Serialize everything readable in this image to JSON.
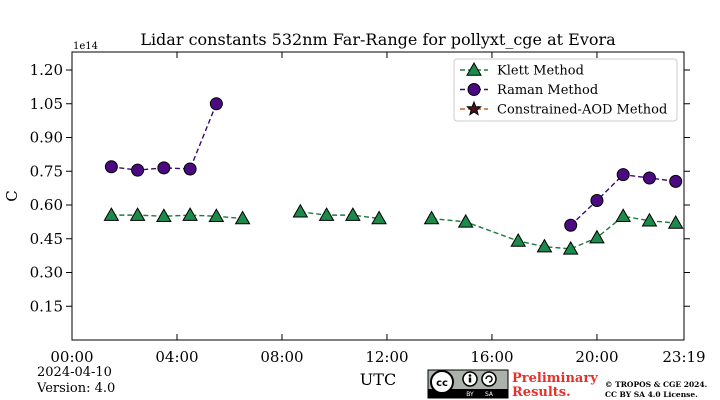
{
  "chart_data": {
    "type": "line",
    "title": "Lidar constants 532nm Far-Range for pollyxt_cge at Evora",
    "xlabel": "UTC",
    "ylabel": "C",
    "y_multiplier_label": "1e14",
    "ylim": [
      0.0,
      1.28
    ],
    "xlim_hours": [
      0,
      23.3167
    ],
    "x_ticks": [
      "00:00",
      "04:00",
      "08:00",
      "12:00",
      "16:00",
      "20:00",
      "23:19"
    ],
    "y_ticks": [
      "0.15",
      "0.30",
      "0.45",
      "0.60",
      "0.75",
      "0.90",
      "1.05",
      "1.20"
    ],
    "grid": false,
    "legend_position": "top-right",
    "series": [
      {
        "name": "Klett Method",
        "marker": "triangle",
        "color": "#1b8a4a",
        "line_color": "#1b7a3e",
        "segments": [
          [
            [
              1.5,
              0.555
            ],
            [
              2.5,
              0.555
            ],
            [
              3.5,
              0.55
            ],
            [
              4.5,
              0.555
            ],
            [
              5.5,
              0.55
            ],
            [
              6.5,
              0.54
            ]
          ],
          [
            [
              8.7,
              0.57
            ],
            [
              9.7,
              0.555
            ],
            [
              10.7,
              0.555
            ],
            [
              11.7,
              0.54
            ]
          ],
          [
            [
              13.7,
              0.54
            ],
            [
              15.0,
              0.525
            ],
            [
              17.0,
              0.44
            ],
            [
              18.0,
              0.415
            ],
            [
              19.0,
              0.405
            ],
            [
              20.0,
              0.455
            ],
            [
              21.0,
              0.55
            ],
            [
              22.0,
              0.53
            ],
            [
              23.0,
              0.52
            ]
          ]
        ]
      },
      {
        "name": "Raman Method",
        "marker": "circle",
        "color": "#4b0a82",
        "line_color": "#3a0a6e",
        "segments": [
          [
            [
              1.5,
              0.77
            ],
            [
              2.5,
              0.755
            ],
            [
              3.5,
              0.765
            ],
            [
              4.5,
              0.76
            ],
            [
              5.5,
              1.05
            ]
          ],
          [
            [
              19.0,
              0.51
            ],
            [
              20.0,
              0.62
            ],
            [
              21.0,
              0.735
            ],
            [
              22.0,
              0.72
            ],
            [
              23.0,
              0.705
            ]
          ]
        ]
      },
      {
        "name": "Constrained-AOD Method",
        "marker": "star",
        "color": "#4a1220",
        "line_color": "#c0641e",
        "segments": []
      }
    ]
  },
  "footer": {
    "date": "2024-04-10",
    "version": "Version: 4.0",
    "cc_label": "cc",
    "cc_by": "BY",
    "cc_sa": "SA",
    "preliminary_line1": "Preliminary",
    "preliminary_line2": "Results.",
    "preliminary_color": "#e8302a",
    "copyright_line1": "© TROPOS & CGE 2024.",
    "copyright_line2": "CC BY SA 4.0 License."
  }
}
